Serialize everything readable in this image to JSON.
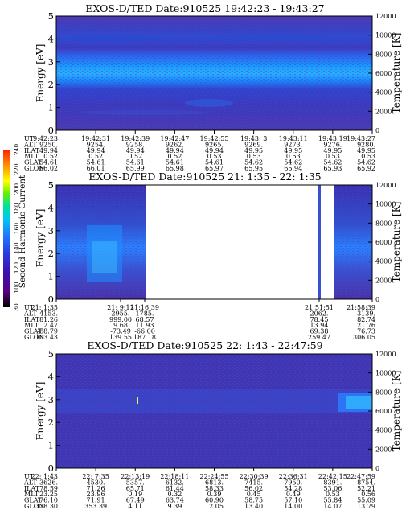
{
  "chart_data": [
    {
      "type": "heatmap",
      "title": "EXOS-D/TED   Date:910525  19:42:23 - 19:43:27",
      "ylabel": "Energy [eV]",
      "y2label": "Temperature [K]",
      "ylim": [
        0,
        5
      ],
      "y2lim": [
        0,
        12000
      ],
      "yticks": [
        "0",
        "1",
        "2",
        "3",
        "4",
        "5"
      ],
      "y2ticks": [
        "0",
        "2000",
        "4000",
        "6000",
        "8000",
        "10000",
        "12000"
      ],
      "rows": [
        {
          "label": "UT",
          "values": [
            "19:42:23",
            "19:42:31",
            "19:42:39",
            "19:42:47",
            "19:42:55",
            "19:43: 3",
            "19:43:11",
            "19:43:19",
            "19:43:27"
          ]
        },
        {
          "label": "ALT",
          "values": [
            "9250.",
            "9254.",
            "9258.",
            "9262.",
            "9265.",
            "9269.",
            "9273.",
            "9276.",
            "9280."
          ]
        },
        {
          "label": "ILAT",
          "values": [
            "49.94",
            "49.94",
            "49.94",
            "49.94",
            "49.94",
            "49.95",
            "49.95",
            "49.95",
            "49.95"
          ]
        },
        {
          "label": "MLT",
          "values": [
            "0.52",
            "0.52",
            "0.52",
            "0.52",
            "0.53",
            "0.53",
            "0.53",
            "0.53",
            "0.53"
          ]
        },
        {
          "label": "GLAT",
          "values": [
            "54.61",
            "54.61",
            "54.61",
            "54.61",
            "54.61",
            "54.62",
            "54.62",
            "54.62",
            "54.62"
          ]
        },
        {
          "label": "GLON",
          "values": [
            "66.02",
            "66.01",
            "65.99",
            "65.98",
            "65.97",
            "65.95",
            "65.94",
            "65.93",
            "65.92"
          ]
        }
      ]
    },
    {
      "type": "heatmap",
      "title": "EXOS-D/TED   Date:910525  21: 1:35 - 22: 1:35",
      "ylabel": "Energy [eV]",
      "y2label": "Temperature [K]",
      "ylim": [
        0,
        5
      ],
      "y2lim": [
        0,
        12000
      ],
      "yticks": [
        "0",
        "1",
        "2",
        "3",
        "4",
        "5"
      ],
      "y2ticks": [
        "0",
        "2000",
        "4000",
        "6000",
        "8000",
        "10000",
        "12000"
      ],
      "rows": [
        {
          "label": "UT",
          "values": [
            "21: 1:35",
            "21: 9:11",
            "21:16:39",
            "21:51:51",
            "21:58:39"
          ]
        },
        {
          "label": "ALT",
          "values": [
            "4153.",
            "2955.",
            "1785.",
            "2062.",
            "3139."
          ]
        },
        {
          "label": "ILAT",
          "values": [
            "81.26",
            "999.00",
            "68.57",
            "78.45",
            "82.74"
          ]
        },
        {
          "label": "MLT",
          "values": [
            "2.47",
            "9.68",
            "11.93",
            "13.94",
            "21.76"
          ]
        },
        {
          "label": "GLAT",
          "values": [
            "-68.79",
            "-73.49",
            "-66.00",
            "69.38",
            "76.73"
          ]
        },
        {
          "label": "GLON",
          "values": [
            "103.43",
            "139.55",
            "187.18",
            "259.47",
            "306.05"
          ]
        }
      ]
    },
    {
      "type": "heatmap",
      "title": "EXOS-D/TED   Date:910525  22: 1:43 - 22:47:59",
      "ylabel": "Energy [eV]",
      "y2label": "Temperature [K]",
      "ylim": [
        0,
        5
      ],
      "y2lim": [
        0,
        12000
      ],
      "yticks": [
        "0",
        "1",
        "2",
        "3",
        "4",
        "5"
      ],
      "y2ticks": [
        "0",
        "2000",
        "4000",
        "6000",
        "8000",
        "10000",
        "12000"
      ],
      "rows": [
        {
          "label": "UT",
          "values": [
            "22: 1:43",
            "22: 7:35",
            "22:13:19",
            "22:18:11",
            "22:24:55",
            "22:30:39",
            "22:36:31",
            "22:42:15",
            "22:47:59"
          ]
        },
        {
          "label": "ALT",
          "values": [
            "3626.",
            "4530.",
            "5357.",
            "6132.",
            "6813.",
            "7415.",
            "7950.",
            "8391.",
            "8754."
          ]
        },
        {
          "label": "ILAT",
          "values": [
            "78.59",
            "71.26",
            "65.71",
            "61.44",
            "58.33",
            "56.02",
            "54.28",
            "53.06",
            "52.21"
          ]
        },
        {
          "label": "MLT",
          "values": [
            "23.25",
            "23.96",
            "0.19",
            "0.32",
            "0.39",
            "0.45",
            "0.49",
            "0.53",
            "0.56"
          ]
        },
        {
          "label": "GLAT",
          "values": [
            "76.10",
            "71.91",
            "67.49",
            "63.74",
            "60.90",
            "58.75",
            "57.10",
            "55.84",
            "55.09"
          ]
        },
        {
          "label": "GLON",
          "values": [
            "328.30",
            "353.39",
            "4.11",
            "9.39",
            "12.05",
            "13.40",
            "14.00",
            "14.07",
            "13.79"
          ]
        }
      ]
    }
  ],
  "colorbar": {
    "label": "Second Harmonic Current",
    "ticks": [
      "80",
      "100",
      "120",
      "140",
      "160",
      "180",
      "200",
      "220",
      "240"
    ],
    "colors": [
      "#000000",
      "#5a0080",
      "#3a10b0",
      "#2a3ae0",
      "#1e7cff",
      "#00c8f0",
      "#00e0a0",
      "#60f000",
      "#ffff00",
      "#ff9000",
      "#ff2000"
    ],
    "background": "#4a3aa8"
  }
}
